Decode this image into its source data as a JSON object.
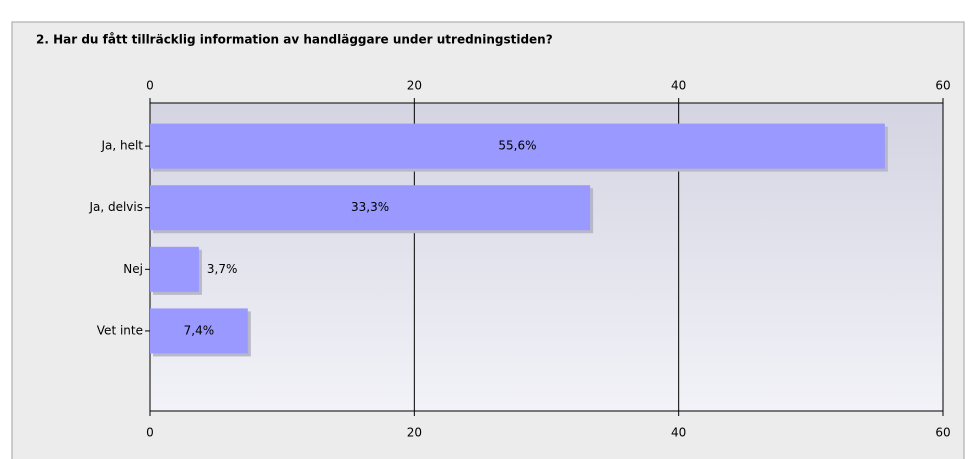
{
  "chart_data": {
    "type": "bar",
    "orientation": "horizontal",
    "title": "2. Har du fått tillräcklig information av handläggare under utredningstiden?",
    "categories": [
      "Ja, helt",
      "Ja, delvis",
      "Nej",
      "Vet inte"
    ],
    "values": [
      55.6,
      33.3,
      3.7,
      7.4
    ],
    "value_labels": [
      "55,6%",
      "33,3%",
      "3,7%",
      "7,4%"
    ],
    "color": "#9999ff",
    "xlim": [
      0,
      60
    ],
    "xticks": [
      0,
      20,
      40,
      60
    ],
    "grid": true
  }
}
